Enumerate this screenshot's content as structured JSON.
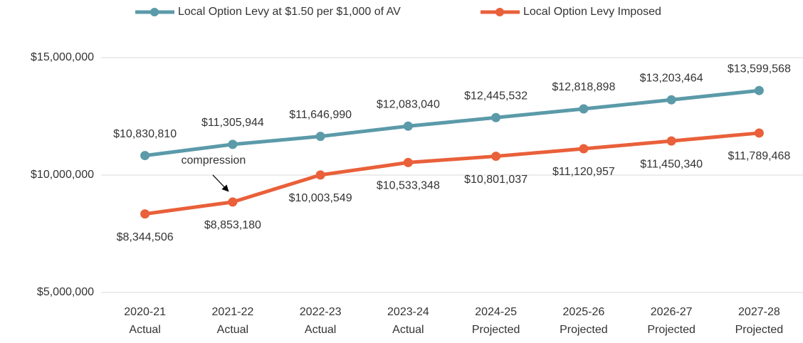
{
  "chart_data": {
    "type": "line",
    "categories": [
      [
        "2020-21",
        "Actual"
      ],
      [
        "2021-22",
        "Actual"
      ],
      [
        "2022-23",
        "Actual"
      ],
      [
        "2023-24",
        "Actual"
      ],
      [
        "2024-25",
        "Projected"
      ],
      [
        "2025-26",
        "Projected"
      ],
      [
        "2026-27",
        "Projected"
      ],
      [
        "2027-28",
        "Projected"
      ]
    ],
    "series": [
      {
        "name": "Local Option Levy at $1.50 per $1,000 of AV",
        "color": "#5b9aa9",
        "values": [
          10830810,
          11305944,
          11646990,
          12083040,
          12445532,
          12818898,
          13203464,
          13599568
        ],
        "value_labels": [
          "$10,830,810",
          "$11,305,944",
          "$11,646,990",
          "$12,083,040",
          "$12,445,532",
          "$12,818,898",
          "$13,203,464",
          "$13,599,568"
        ]
      },
      {
        "name": "Local Option Levy Imposed",
        "color": "#e9603a",
        "values": [
          8344506,
          8853180,
          10003549,
          10533348,
          10801037,
          11120957,
          11450340,
          11789468
        ],
        "value_labels": [
          "$8,344,506",
          "$8,853,180",
          "$10,003,549",
          "$10,533,348",
          "$10,801,037",
          "$11,120,957",
          "$11,450,340",
          "$11,789,468"
        ]
      }
    ],
    "ylim": [
      5000000,
      15000000
    ],
    "yticks": [
      {
        "value": 5000000,
        "label": "$5,000,000"
      },
      {
        "value": 10000000,
        "label": "$10,000,000"
      },
      {
        "value": 15000000,
        "label": "$15,000,000"
      }
    ],
    "grid": true,
    "legend": "top",
    "annotations": [
      {
        "text": "compression",
        "category": 1,
        "series": 1
      }
    ]
  }
}
